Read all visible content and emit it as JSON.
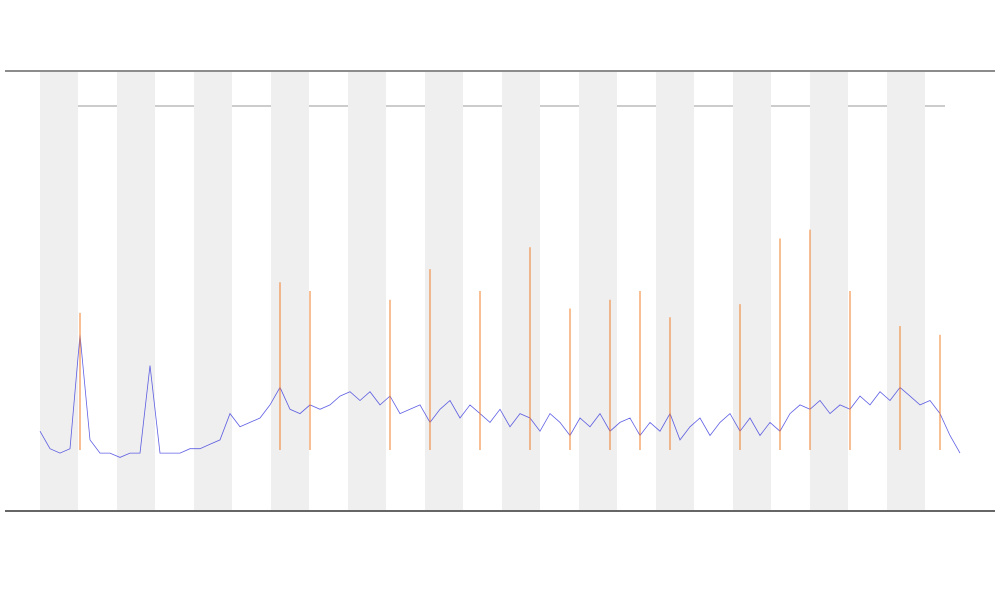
{
  "chart_data": {
    "type": "line",
    "ylim": [
      0,
      100
    ],
    "series": [
      {
        "color": "#3a3adf",
        "values": [
          18,
          14,
          13,
          14,
          40,
          16,
          13,
          13,
          12,
          13,
          13,
          33,
          13,
          13,
          13,
          14,
          14,
          15,
          16,
          22,
          19,
          20,
          21,
          24,
          28,
          23,
          22,
          24,
          23,
          24,
          26,
          27,
          25,
          27,
          24,
          26,
          22,
          23,
          24,
          20,
          23,
          25,
          21,
          24,
          22,
          20,
          23,
          19,
          22,
          21,
          18,
          22,
          20,
          17,
          21,
          19,
          22,
          18,
          20,
          21,
          17,
          20,
          18,
          22,
          16,
          19,
          21,
          17,
          20,
          22,
          18,
          21,
          17,
          20,
          18,
          22,
          24,
          23,
          25,
          22,
          24,
          23,
          26,
          24,
          27,
          25,
          28,
          26,
          24,
          25,
          22,
          17,
          13
        ]
      },
      {
        "color": "#f07a20",
        "values": [
          null,
          null,
          null,
          null,
          45,
          null,
          null,
          null,
          null,
          null,
          null,
          null,
          null,
          null,
          null,
          null,
          null,
          null,
          null,
          null,
          null,
          null,
          null,
          null,
          52,
          null,
          null,
          50,
          null,
          null,
          null,
          null,
          null,
          null,
          null,
          48,
          null,
          null,
          null,
          55,
          null,
          null,
          null,
          null,
          50,
          null,
          null,
          null,
          null,
          60,
          null,
          null,
          null,
          46,
          null,
          null,
          null,
          48,
          null,
          null,
          50,
          null,
          null,
          44,
          null,
          null,
          null,
          null,
          null,
          null,
          47,
          null,
          null,
          null,
          62,
          null,
          null,
          64,
          null,
          null,
          null,
          50,
          null,
          null,
          null,
          null,
          42,
          null,
          null,
          null,
          40,
          null,
          null
        ]
      }
    ]
  }
}
